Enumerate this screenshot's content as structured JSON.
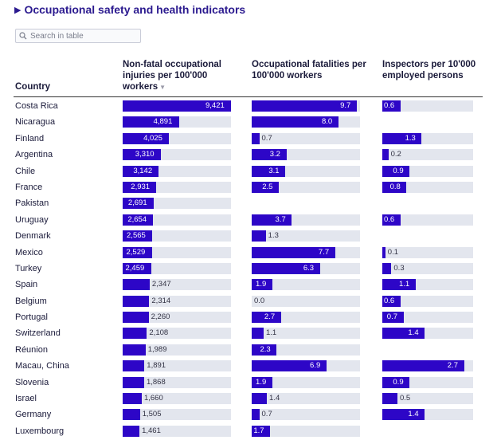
{
  "title": "Occupational safety and health indicators",
  "search": {
    "placeholder": "Search in table"
  },
  "columns": {
    "country": "Country",
    "injuries": "Non-fatal occupational injuries per 100'000 workers",
    "fatalities": "Occupational fatalities per 100'000 workers",
    "inspectors": "Inspectors per 10'000 employed persons"
  },
  "scales": {
    "injuries_max": 9421,
    "fatalities_max": 10,
    "inspectors_max": 3.0
  },
  "colors": {
    "bar": "#2d06c7",
    "track": "#e3e6ee",
    "title": "#2b1a8f"
  },
  "rows": [
    {
      "country": "Costa Rica",
      "injuries": 9421,
      "injuries_label": "9,421",
      "fatalities": 9.7,
      "fatalities_label": "9.7",
      "inspectors": 0.6,
      "inspectors_label": "0.6"
    },
    {
      "country": "Nicaragua",
      "injuries": 4891,
      "injuries_label": "4,891",
      "fatalities": 8.0,
      "fatalities_label": "8.0",
      "inspectors": null,
      "inspectors_label": ""
    },
    {
      "country": "Finland",
      "injuries": 4025,
      "injuries_label": "4,025",
      "fatalities": 0.7,
      "fatalities_label": "0.7",
      "inspectors": 1.3,
      "inspectors_label": "1.3"
    },
    {
      "country": "Argentina",
      "injuries": 3310,
      "injuries_label": "3,310",
      "fatalities": 3.2,
      "fatalities_label": "3.2",
      "inspectors": 0.2,
      "inspectors_label": "0.2"
    },
    {
      "country": "Chile",
      "injuries": 3142,
      "injuries_label": "3,142",
      "fatalities": 3.1,
      "fatalities_label": "3.1",
      "inspectors": 0.9,
      "inspectors_label": "0.9"
    },
    {
      "country": "France",
      "injuries": 2931,
      "injuries_label": "2,931",
      "fatalities": 2.5,
      "fatalities_label": "2.5",
      "inspectors": 0.8,
      "inspectors_label": "0.8"
    },
    {
      "country": "Pakistan",
      "injuries": 2691,
      "injuries_label": "2,691",
      "fatalities": null,
      "fatalities_label": "",
      "inspectors": null,
      "inspectors_label": ""
    },
    {
      "country": "Uruguay",
      "injuries": 2654,
      "injuries_label": "2,654",
      "fatalities": 3.7,
      "fatalities_label": "3.7",
      "inspectors": 0.6,
      "inspectors_label": "0.6"
    },
    {
      "country": "Denmark",
      "injuries": 2565,
      "injuries_label": "2,565",
      "fatalities": 1.3,
      "fatalities_label": "1.3",
      "inspectors": null,
      "inspectors_label": ""
    },
    {
      "country": "Mexico",
      "injuries": 2529,
      "injuries_label": "2,529",
      "fatalities": 7.7,
      "fatalities_label": "7.7",
      "inspectors": 0.1,
      "inspectors_label": "0.1"
    },
    {
      "country": "Turkey",
      "injuries": 2459,
      "injuries_label": "2,459",
      "fatalities": 6.3,
      "fatalities_label": "6.3",
      "inspectors": 0.3,
      "inspectors_label": "0.3"
    },
    {
      "country": "Spain",
      "injuries": 2347,
      "injuries_label": "2,347",
      "fatalities": 1.9,
      "fatalities_label": "1.9",
      "inspectors": 1.1,
      "inspectors_label": "1.1"
    },
    {
      "country": "Belgium",
      "injuries": 2314,
      "injuries_label": "2,314",
      "fatalities": 0.0,
      "fatalities_label": "0.0",
      "inspectors": 0.6,
      "inspectors_label": "0.6"
    },
    {
      "country": "Portugal",
      "injuries": 2260,
      "injuries_label": "2,260",
      "fatalities": 2.7,
      "fatalities_label": "2.7",
      "inspectors": 0.7,
      "inspectors_label": "0.7"
    },
    {
      "country": "Switzerland",
      "injuries": 2108,
      "injuries_label": "2,108",
      "fatalities": 1.1,
      "fatalities_label": "1.1",
      "inspectors": 1.4,
      "inspectors_label": "1.4"
    },
    {
      "country": "Réunion",
      "injuries": 1989,
      "injuries_label": "1,989",
      "fatalities": 2.3,
      "fatalities_label": "2.3",
      "inspectors": null,
      "inspectors_label": ""
    },
    {
      "country": "Macau, China",
      "injuries": 1891,
      "injuries_label": "1,891",
      "fatalities": 6.9,
      "fatalities_label": "6.9",
      "inspectors": 2.7,
      "inspectors_label": "2.7"
    },
    {
      "country": "Slovenia",
      "injuries": 1868,
      "injuries_label": "1,868",
      "fatalities": 1.9,
      "fatalities_label": "1.9",
      "inspectors": 0.9,
      "inspectors_label": "0.9"
    },
    {
      "country": "Israel",
      "injuries": 1660,
      "injuries_label": "1,660",
      "fatalities": 1.4,
      "fatalities_label": "1.4",
      "inspectors": 0.5,
      "inspectors_label": "0.5"
    },
    {
      "country": "Germany",
      "injuries": 1505,
      "injuries_label": "1,505",
      "fatalities": 0.7,
      "fatalities_label": "0.7",
      "inspectors": 1.4,
      "inspectors_label": "1.4"
    },
    {
      "country": "Luxembourg",
      "injuries": 1461,
      "injuries_label": "1,461",
      "fatalities": 1.7,
      "fatalities_label": "1.7",
      "inspectors": null,
      "inspectors_label": ""
    }
  ]
}
